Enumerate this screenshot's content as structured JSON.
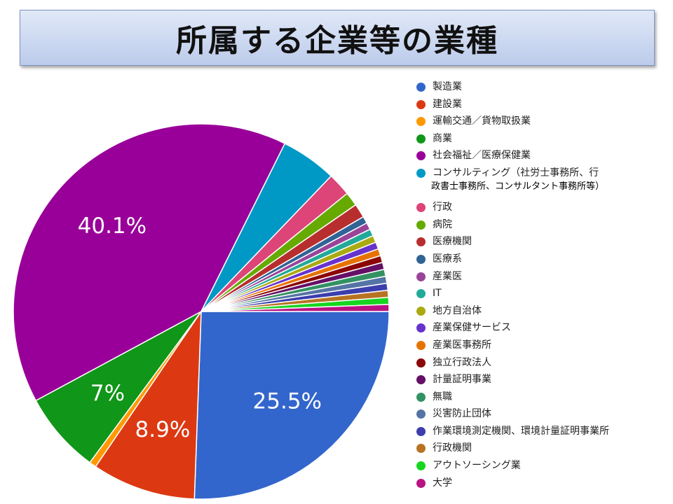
{
  "title": "所属する企業等の業種",
  "chart_data": {
    "type": "pie",
    "title": "所属する企業等の業種",
    "legend_position": "right",
    "slices": [
      {
        "label": "製造業",
        "value": 25.5,
        "color": "#3366cc",
        "display": "25.5%"
      },
      {
        "label": "建設業",
        "value": 8.9,
        "color": "#dc3912",
        "display": "8.9%"
      },
      {
        "label": "運輸交通／貨物取扱業",
        "value": 0.6,
        "color": "#ff9900",
        "display": ""
      },
      {
        "label": "商業",
        "value": 7.0,
        "color": "#109618",
        "display": "7%"
      },
      {
        "label": "社会福祉／医療保健業",
        "value": 40.1,
        "color": "#990099",
        "display": "40.1%"
      },
      {
        "label": "コンサルティング（社労士事務所、行",
        "label_cont": "政書士事務所、コンサルタント事務所等）",
        "value": 4.8,
        "color": "#0099c6",
        "display": ""
      },
      {
        "label": "行政",
        "value": 2.0,
        "color": "#dd4477",
        "display": ""
      },
      {
        "label": "病院",
        "value": 1.2,
        "color": "#66aa00",
        "display": ""
      },
      {
        "label": "医療機関",
        "value": 1.2,
        "color": "#b82e2e",
        "display": ""
      },
      {
        "label": "医療系",
        "value": 0.6,
        "color": "#316395",
        "display": ""
      },
      {
        "label": "産業医",
        "value": 0.6,
        "color": "#994499",
        "display": ""
      },
      {
        "label": "IT",
        "value": 0.6,
        "color": "#22aa99",
        "display": ""
      },
      {
        "label": "地方自治体",
        "value": 0.6,
        "color": "#aaaa11",
        "display": ""
      },
      {
        "label": "産業保健サービス",
        "value": 0.6,
        "color": "#6633cc",
        "display": ""
      },
      {
        "label": "産業医事務所",
        "value": 0.6,
        "color": "#e67300",
        "display": ""
      },
      {
        "label": "独立行政法人",
        "value": 0.6,
        "color": "#8b0707",
        "display": ""
      },
      {
        "label": "計量証明事業",
        "value": 0.6,
        "color": "#651067",
        "display": ""
      },
      {
        "label": "無職",
        "value": 0.6,
        "color": "#329262",
        "display": ""
      },
      {
        "label": "災害防止団体",
        "value": 0.6,
        "color": "#5574a6",
        "display": ""
      },
      {
        "label": "作業環境測定機関、環境計量証明事業所",
        "value": 0.6,
        "color": "#3b3eac",
        "display": ""
      },
      {
        "label": "行政機関",
        "value": 0.6,
        "color": "#b77322",
        "display": ""
      },
      {
        "label": "アウトソーシング業",
        "value": 0.6,
        "color": "#16d620",
        "display": ""
      },
      {
        "label": "大学",
        "value": 0.6,
        "color": "#b91383",
        "display": ""
      }
    ]
  }
}
